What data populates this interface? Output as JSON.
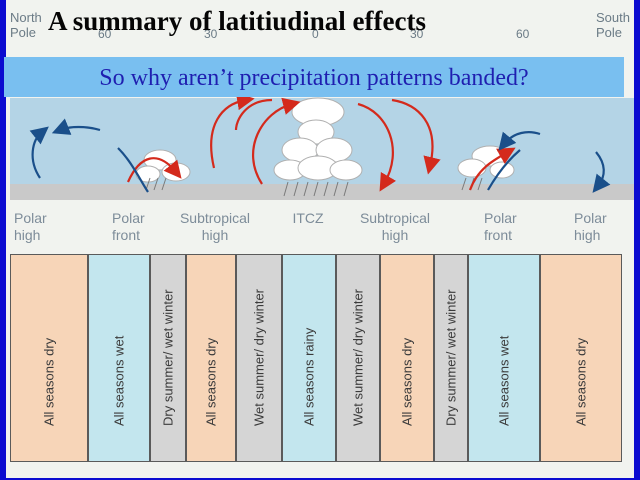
{
  "title": "A summary  of latitiudinal effects",
  "subtitle": "So why aren’t precipitation patterns banded?",
  "poles": {
    "north": "North Pole",
    "south": "South Pole"
  },
  "latitudes": [
    "60",
    "30",
    "0",
    "30",
    "60"
  ],
  "pressure_labels": [
    "Polar high",
    "Polar front",
    "Subtropical high",
    "ITCZ",
    "Subtropical high",
    "Polar front",
    "Polar high"
  ],
  "zones": [
    {
      "label": "All seasons dry",
      "color": "#f7d5b8"
    },
    {
      "label": "All seasons wet",
      "color": "#c3e6ee"
    },
    {
      "label": "Dry summer/ wet winter",
      "color": "#d5d5d5"
    },
    {
      "label": "All seasons dry",
      "color": "#f7d5b8"
    },
    {
      "label": "Wet summer/ dry winter",
      "color": "#d5d5d5"
    },
    {
      "label": "All seasons rainy",
      "color": "#c3e6ee"
    },
    {
      "label": "Wet summer/ dry winter",
      "color": "#d5d5d5"
    },
    {
      "label": "All seasons dry",
      "color": "#f7d5b8"
    },
    {
      "label": "Dry summer/ wet winter",
      "color": "#d5d5d5"
    },
    {
      "label": "All seasons wet",
      "color": "#c3e6ee"
    },
    {
      "label": "All seasons dry",
      "color": "#f7d5b8"
    }
  ],
  "colors": {
    "background": "#0b0bd0",
    "banner": "#79bff0",
    "banner_text": "#1f1fb0",
    "warm_air": "#d42a1c",
    "cold_air": "#1a4f8a"
  }
}
